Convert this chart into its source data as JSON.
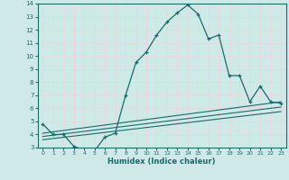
{
  "xlabel": "Humidex (Indice chaleur)",
  "ylabel": "",
  "bg_color": "#cfe8e8",
  "grid_color": "#e8d8d8",
  "line_color": "#1a6b6b",
  "xlim": [
    -0.5,
    23.5
  ],
  "ylim": [
    3,
    14
  ],
  "xticks": [
    0,
    1,
    2,
    3,
    4,
    5,
    6,
    7,
    8,
    9,
    10,
    11,
    12,
    13,
    14,
    15,
    16,
    17,
    18,
    19,
    20,
    21,
    22,
    23
  ],
  "yticks": [
    3,
    4,
    5,
    6,
    7,
    8,
    9,
    10,
    11,
    12,
    13,
    14
  ],
  "line1_x": [
    0,
    1,
    2,
    3,
    4,
    5,
    6,
    7,
    8,
    9,
    10,
    11,
    12,
    13,
    14,
    15,
    16,
    17,
    18,
    19,
    20,
    21,
    22,
    23
  ],
  "line1_y": [
    4.8,
    4.0,
    4.0,
    3.1,
    2.8,
    2.75,
    3.8,
    4.1,
    7.0,
    9.5,
    10.3,
    11.6,
    12.6,
    13.3,
    13.9,
    13.2,
    11.3,
    11.6,
    8.5,
    8.5,
    6.5,
    7.7,
    6.5,
    6.4
  ],
  "line2_x": [
    0,
    23
  ],
  "line2_y": [
    4.1,
    6.5
  ],
  "line3_x": [
    0,
    23
  ],
  "line3_y": [
    3.85,
    6.1
  ],
  "line4_x": [
    0,
    23
  ],
  "line4_y": [
    3.6,
    5.75
  ]
}
